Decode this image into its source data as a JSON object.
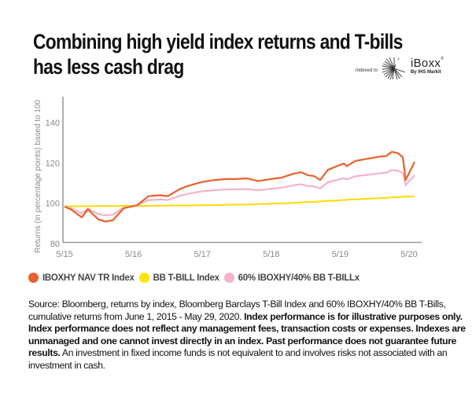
{
  "header": {
    "title_line1": "Combining high yield index returns and T-bills",
    "title_line2": "has less cash drag"
  },
  "logo": {
    "indexed_to": "Indexed to",
    "brand": "iBoxx",
    "registered": "®",
    "by": "By IHS Markit"
  },
  "legend": [
    {
      "label": "IBOXHY NAV TR Index",
      "color": "#e8612c"
    },
    {
      "label": "BB T-BILL Index",
      "color": "#ffd800"
    },
    {
      "label": "60% IBOXHY/40% BB T-BILLx",
      "color": "#f4b3c6"
    }
  ],
  "footnote": {
    "normal1": "Source: Bloomberg, returns by index, Bloomberg Barclays T-Bill Index and 60% IBOXHY/40% BB T-Bills, cumulative returns from June 1, 2015 - May 29, 2020. ",
    "bold": "Index performance is for illustrative purposes only. Index performance does not reflect any management fees, transaction costs or expenses. Indexes are unmanaged and one cannot invest directly in an index. Past performance does not guarantee future results.",
    "normal2": " An investment in fixed income funds is not equivalent to and involves risks not associated with an investment in cash."
  },
  "chart_data": {
    "type": "line",
    "title": "Combining high yield index returns and T-bills has less cash drag",
    "xlabel": "",
    "ylabel": "Returns (in percentage points) based to 100",
    "ylim": [
      80,
      150
    ],
    "yticks": [
      80,
      100,
      120,
      140
    ],
    "xlim": [
      2015.42,
      2020.42
    ],
    "xticks": [
      {
        "value": 2015.42,
        "label": "5/15"
      },
      {
        "value": 2016.42,
        "label": "5/16"
      },
      {
        "value": 2017.42,
        "label": "5/17"
      },
      {
        "value": 2018.42,
        "label": "5/18"
      },
      {
        "value": 2019.42,
        "label": "5/19"
      },
      {
        "value": 2020.42,
        "label": "5/20"
      }
    ],
    "grid": false,
    "legend_position": "bottom",
    "x": [
      2015.42,
      2015.51,
      2015.67,
      2015.76,
      2015.91,
      2016.01,
      2016.12,
      2016.28,
      2016.47,
      2016.64,
      2016.81,
      2016.92,
      2017.09,
      2017.2,
      2017.41,
      2017.6,
      2017.77,
      2017.89,
      2018.07,
      2018.23,
      2018.41,
      2018.57,
      2018.74,
      2018.85,
      2018.96,
      2019.04,
      2019.13,
      2019.24,
      2019.38,
      2019.47,
      2019.52,
      2019.64,
      2019.81,
      2019.98,
      2020.09,
      2020.17,
      2020.26,
      2020.33,
      2020.37,
      2020.5
    ],
    "series": [
      {
        "name": "IBOXHY NAV TR Index",
        "color": "#e8612c",
        "values": [
          98.3,
          97,
          93,
          97,
          92,
          91,
          91.5,
          97.5,
          99,
          103.5,
          104,
          103.5,
          107,
          108.5,
          110.5,
          111.5,
          112,
          112,
          112.3,
          111,
          112,
          112.7,
          114.6,
          115.4,
          113.8,
          113.5,
          111.5,
          116.5,
          118.5,
          119.7,
          118.5,
          121,
          122,
          123,
          123.5,
          125.5,
          124.8,
          122.8,
          111.5,
          120.5
        ]
      },
      {
        "name": "BB T-BILL Index",
        "color": "#ffd800",
        "values": [
          98.5,
          98.5,
          98.5,
          98.5,
          98.6,
          98.6,
          98.6,
          98.7,
          98.7,
          98.7,
          98.8,
          98.8,
          98.9,
          98.9,
          99,
          99.1,
          99.2,
          99.3,
          99.4,
          99.6,
          99.8,
          100,
          100.2,
          100.4,
          100.6,
          100.7,
          100.9,
          101.1,
          101.4,
          101.6,
          101.7,
          101.9,
          102.2,
          102.5,
          102.7,
          102.9,
          103,
          103.2,
          103.3,
          103.4
        ]
      },
      {
        "name": "60% IBOXHY/40% BB T-BILLx",
        "color": "#f4b3c6",
        "values": [
          98.3,
          97.6,
          95,
          97.4,
          94.6,
          94,
          94.3,
          97.8,
          98.9,
          101.6,
          101.9,
          101.6,
          103.7,
          104.6,
          105.9,
          106.5,
          106.8,
          106.9,
          107,
          106.4,
          107.1,
          107.7,
          108.9,
          109.4,
          108.5,
          108.4,
          107.3,
          110.4,
          111.6,
          112.4,
          111.8,
          113.4,
          114.1,
          114.8,
          115.2,
          116.5,
          116.1,
          115,
          108.9,
          113.9
        ]
      }
    ]
  }
}
